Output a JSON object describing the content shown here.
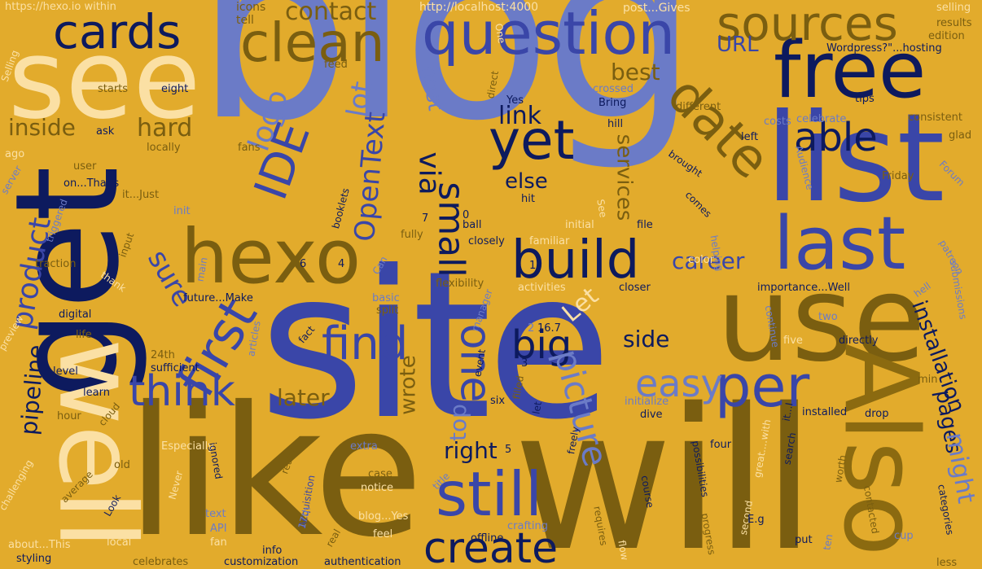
{
  "words": [
    {
      "text": "blog",
      "color": "c2"
    },
    {
      "text": "site",
      "color": "c1"
    },
    {
      "text": "like",
      "color": "c6"
    },
    {
      "text": "will",
      "color": "c6"
    },
    {
      "text": "get",
      "color": "c4"
    },
    {
      "text": "well",
      "color": "c5"
    },
    {
      "text": "see",
      "color": "c5"
    },
    {
      "text": "list",
      "color": "c1"
    },
    {
      "text": "use",
      "color": "c6"
    },
    {
      "text": "Also",
      "color": "c3"
    },
    {
      "text": "free",
      "color": "c4"
    },
    {
      "text": "question",
      "color": "c1"
    },
    {
      "text": "last",
      "color": "c1"
    },
    {
      "text": "hexo",
      "color": "c6"
    },
    {
      "text": "clean",
      "color": "c6"
    },
    {
      "text": "cards",
      "color": "c4"
    },
    {
      "text": "sources",
      "color": "c6"
    },
    {
      "text": "yet",
      "color": "c4"
    },
    {
      "text": "build",
      "color": "c4"
    },
    {
      "text": "still",
      "color": "c1"
    },
    {
      "text": "create",
      "color": "c4"
    },
    {
      "text": "first",
      "color": "c1"
    },
    {
      "text": "think",
      "color": "c1"
    },
    {
      "text": "date",
      "color": "c6"
    },
    {
      "text": "able",
      "color": "c4"
    },
    {
      "text": "per",
      "color": "c1"
    },
    {
      "text": "easy",
      "color": "c2"
    },
    {
      "text": "find",
      "color": "c1"
    },
    {
      "text": "big",
      "color": "c4"
    },
    {
      "text": "one",
      "color": "c1"
    },
    {
      "text": "picture",
      "color": "c2"
    },
    {
      "text": "small",
      "color": "c4"
    },
    {
      "text": "product",
      "color": "c1"
    },
    {
      "text": "IDE",
      "color": "c1"
    },
    {
      "text": "logo",
      "color": "c2"
    },
    {
      "text": "OpenText",
      "color": "c1"
    },
    {
      "text": "host",
      "color": "c2"
    },
    {
      "text": "lot",
      "color": "c2"
    },
    {
      "text": "via",
      "color": "c4"
    },
    {
      "text": "link",
      "color": "c4"
    },
    {
      "text": "else",
      "color": "c4"
    },
    {
      "text": "services",
      "color": "c6"
    },
    {
      "text": "career",
      "color": "c1"
    },
    {
      "text": "best",
      "color": "c6"
    },
    {
      "text": "URL",
      "color": "c1"
    },
    {
      "text": "contact",
      "color": "c6"
    },
    {
      "text": "inside",
      "color": "c6"
    },
    {
      "text": "hard",
      "color": "c6"
    },
    {
      "text": "sure",
      "color": "c1"
    },
    {
      "text": "pipeline",
      "color": "c4"
    },
    {
      "text": "Let",
      "color": "c5"
    },
    {
      "text": "installation",
      "color": "c4"
    },
    {
      "text": "pages",
      "color": "c4"
    },
    {
      "text": "might",
      "color": "c2"
    },
    {
      "text": "side",
      "color": "c4"
    },
    {
      "text": "wrote",
      "color": "c6"
    },
    {
      "text": "later",
      "color": "c6"
    },
    {
      "text": "top",
      "color": "c2"
    },
    {
      "text": "right",
      "color": "c4"
    },
    {
      "text": "icons",
      "color": "c6"
    },
    {
      "text": "tell",
      "color": "c6"
    },
    {
      "text": "http://localhost:4000",
      "color": "c5"
    },
    {
      "text": "https://hexo.io within",
      "color": "c5"
    },
    {
      "text": "post...Gives",
      "color": "c5"
    },
    {
      "text": "selling",
      "color": "c5"
    },
    {
      "text": "results",
      "color": "c6"
    },
    {
      "text": "edition",
      "color": "c6"
    },
    {
      "text": "Wordpress?\"...hosting",
      "color": "c4"
    },
    {
      "text": "Selling",
      "color": "c5"
    },
    {
      "text": "feed",
      "color": "c6"
    },
    {
      "text": "starts",
      "color": "c6"
    },
    {
      "text": "eight",
      "color": "c4"
    },
    {
      "text": "ask",
      "color": "c4"
    },
    {
      "text": "locally",
      "color": "c6"
    },
    {
      "text": "ago",
      "color": "c5"
    },
    {
      "text": "user",
      "color": "c6"
    },
    {
      "text": "on...That's",
      "color": "c4"
    },
    {
      "text": "it...Just",
      "color": "c6"
    },
    {
      "text": "init",
      "color": "c2"
    },
    {
      "text": "server",
      "color": "c2"
    },
    {
      "text": "triggered",
      "color": "c2"
    },
    {
      "text": "input",
      "color": "c6"
    },
    {
      "text": "traction",
      "color": "c6"
    },
    {
      "text": "thank",
      "color": "c5"
    },
    {
      "text": "digital",
      "color": "c4"
    },
    {
      "text": "life",
      "color": "c6"
    },
    {
      "text": "preview",
      "color": "c5"
    },
    {
      "text": "24th",
      "color": "c6"
    },
    {
      "text": "sufficient",
      "color": "c4"
    },
    {
      "text": "level",
      "color": "c4"
    },
    {
      "text": "learn",
      "color": "c4"
    },
    {
      "text": "hour",
      "color": "c6"
    },
    {
      "text": "cloud",
      "color": "c6"
    },
    {
      "text": "old",
      "color": "c6"
    },
    {
      "text": "average",
      "color": "c6"
    },
    {
      "text": "challenging",
      "color": "c5"
    },
    {
      "text": "Especially",
      "color": "c5"
    },
    {
      "text": "extra",
      "color": "c2"
    },
    {
      "text": "case",
      "color": "c6"
    },
    {
      "text": "notice",
      "color": "c5"
    },
    {
      "text": "title",
      "color": "c2"
    },
    {
      "text": "blog...Yes",
      "color": "c5"
    },
    {
      "text": "feel",
      "color": "c5"
    },
    {
      "text": "real",
      "color": "c6"
    },
    {
      "text": "info",
      "color": "c4"
    },
    {
      "text": "offline",
      "color": "c4"
    },
    {
      "text": "crafting",
      "color": "c2"
    },
    {
      "text": "about...This",
      "color": "c5"
    },
    {
      "text": "styling",
      "color": "c4"
    },
    {
      "text": "local",
      "color": "c5"
    },
    {
      "text": "fan",
      "color": "c5"
    },
    {
      "text": "API",
      "color": "c2"
    },
    {
      "text": "text",
      "color": "c2"
    },
    {
      "text": "celebrates",
      "color": "c6"
    },
    {
      "text": "customization",
      "color": "c4"
    },
    {
      "text": "authentication",
      "color": "c4"
    },
    {
      "text": "Look",
      "color": "c4"
    },
    {
      "text": "Never",
      "color": "c5"
    },
    {
      "text": "ignored",
      "color": "c4"
    },
    {
      "text": "Acquisition",
      "color": "c1"
    },
    {
      "text": "17th",
      "color": "c2"
    },
    {
      "text": "really",
      "color": "c6"
    },
    {
      "text": "crossed",
      "color": "c2"
    },
    {
      "text": "Bring",
      "color": "c4"
    },
    {
      "text": "Yes",
      "color": "c4"
    },
    {
      "text": "direct",
      "color": "c6"
    },
    {
      "text": "One",
      "color": "c5"
    },
    {
      "text": "different",
      "color": "c6"
    },
    {
      "text": "tips",
      "color": "c4"
    },
    {
      "text": "costs",
      "color": "c2"
    },
    {
      "text": "celebrate",
      "color": "c2"
    },
    {
      "text": "consistent",
      "color": "c6"
    },
    {
      "text": "glad",
      "color": "c6"
    },
    {
      "text": "left",
      "color": "c4"
    },
    {
      "text": "hill",
      "color": "c4"
    },
    {
      "text": "brought",
      "color": "c4"
    },
    {
      "text": "Audience",
      "color": "c2"
    },
    {
      "text": "Friday",
      "color": "c6"
    },
    {
      "text": "Forum",
      "color": "c2"
    },
    {
      "text": "comes",
      "color": "c4"
    },
    {
      "text": "hit",
      "color": "c4"
    },
    {
      "text": "See",
      "color": "c5"
    },
    {
      "text": "initial",
      "color": "c5"
    },
    {
      "text": "file",
      "color": "c4"
    },
    {
      "text": "helping",
      "color": "c2"
    },
    {
      "text": "patreon",
      "color": "c2"
    },
    {
      "text": "submissions",
      "color": "c2"
    },
    {
      "text": "closely",
      "color": "c4"
    },
    {
      "text": "familiar",
      "color": "c5"
    },
    {
      "text": "color",
      "color": "c5"
    },
    {
      "text": "closer",
      "color": "c4"
    },
    {
      "text": "activities",
      "color": "c5"
    },
    {
      "text": "importance...Well",
      "color": "c4"
    },
    {
      "text": "hell",
      "color": "c2"
    },
    {
      "text": "flexibility",
      "color": "c6"
    },
    {
      "text": "basic",
      "color": "c2"
    },
    {
      "text": "split",
      "color": "c6"
    },
    {
      "text": "manager",
      "color": "c2"
    },
    {
      "text": "fact",
      "color": "c4"
    },
    {
      "text": "articles",
      "color": "c2"
    },
    {
      "text": "event",
      "color": "c4"
    },
    {
      "text": "filled",
      "color": "c6"
    },
    {
      "text": "six",
      "color": "c4"
    },
    {
      "text": "let",
      "color": "c4"
    },
    {
      "text": "initialize",
      "color": "c2"
    },
    {
      "text": "dive",
      "color": "c4"
    },
    {
      "text": "installed",
      "color": "c4"
    },
    {
      "text": "drop",
      "color": "c4"
    },
    {
      "text": "five",
      "color": "c5"
    },
    {
      "text": "directly",
      "color": "c4"
    },
    {
      "text": "two",
      "color": "c2"
    },
    {
      "text": "continue",
      "color": "c2"
    },
    {
      "text": "min",
      "color": "c6"
    },
    {
      "text": "freely",
      "color": "c4"
    },
    {
      "text": "four",
      "color": "c4"
    },
    {
      "text": "great....with",
      "color": "c5"
    },
    {
      "text": "search",
      "color": "c4"
    },
    {
      "text": "it...I",
      "color": "c4"
    },
    {
      "text": "ten",
      "color": "c2"
    },
    {
      "text": "second",
      "color": "c5"
    },
    {
      "text": "worth",
      "color": "c6"
    },
    {
      "text": "possibilities",
      "color": "c4"
    },
    {
      "text": "course",
      "color": "c4"
    },
    {
      "text": "requires",
      "color": "c6"
    },
    {
      "text": "flow",
      "color": "c5"
    },
    {
      "text": "progress",
      "color": "c6"
    },
    {
      "text": "E.g",
      "color": "c4"
    },
    {
      "text": "put",
      "color": "c4"
    },
    {
      "text": "contacted",
      "color": "c6"
    },
    {
      "text": "cup",
      "color": "c2"
    },
    {
      "text": "categories",
      "color": "c4"
    },
    {
      "text": "less",
      "color": "c6"
    },
    {
      "text": "fully",
      "color": "c6"
    },
    {
      "text": "ball",
      "color": "c4"
    },
    {
      "text": "booklets",
      "color": "c4"
    },
    {
      "text": "future...Make",
      "color": "c4"
    },
    {
      "text": "main",
      "color": "c2"
    },
    {
      "text": "fans",
      "color": "c6"
    },
    {
      "text": "Can",
      "color": "c2"
    },
    {
      "text": "7",
      "color": "c4"
    },
    {
      "text": "0",
      "color": "c4"
    },
    {
      "text": "6",
      "color": "c4"
    },
    {
      "text": "4",
      "color": "c4"
    },
    {
      "text": "1",
      "color": "c4"
    },
    {
      "text": "2",
      "color": "c2"
    },
    {
      "text": "16.7",
      "color": "c4"
    },
    {
      "text": "3",
      "color": "c4"
    },
    {
      "text": "5",
      "color": "c4"
    }
  ]
}
